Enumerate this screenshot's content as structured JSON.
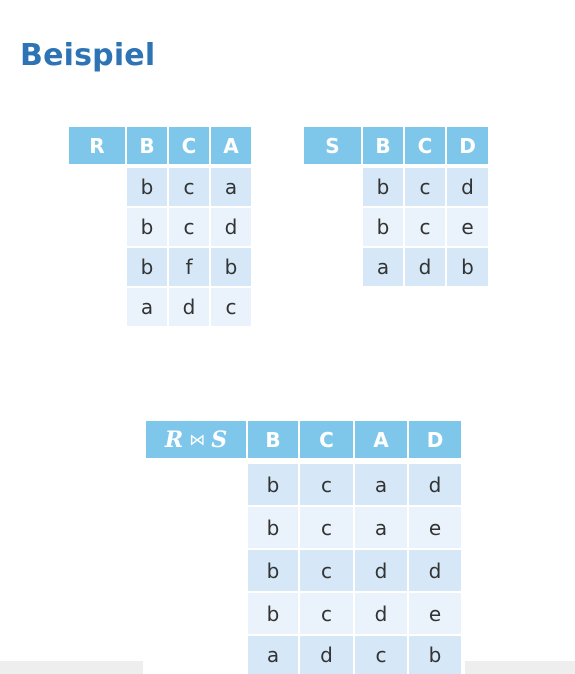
{
  "title": "Beispiel",
  "table_r": {
    "name": "R",
    "columns": [
      "B",
      "C",
      "A"
    ],
    "rows": [
      [
        "b",
        "c",
        "a"
      ],
      [
        "b",
        "c",
        "d"
      ],
      [
        "b",
        "f",
        "b"
      ],
      [
        "a",
        "d",
        "c"
      ]
    ]
  },
  "table_s": {
    "name": "S",
    "columns": [
      "B",
      "C",
      "D"
    ],
    "rows": [
      [
        "b",
        "c",
        "d"
      ],
      [
        "b",
        "c",
        "e"
      ],
      [
        "a",
        "d",
        "b"
      ]
    ]
  },
  "table_join": {
    "name_left": "R",
    "operator": "⋈",
    "name_right": "S",
    "columns": [
      "B",
      "C",
      "A",
      "D"
    ],
    "rows": [
      [
        "b",
        "c",
        "a",
        "d"
      ],
      [
        "b",
        "c",
        "a",
        "e"
      ],
      [
        "b",
        "c",
        "d",
        "d"
      ],
      [
        "b",
        "c",
        "d",
        "e"
      ],
      [
        "a",
        "d",
        "c",
        "b"
      ]
    ]
  }
}
